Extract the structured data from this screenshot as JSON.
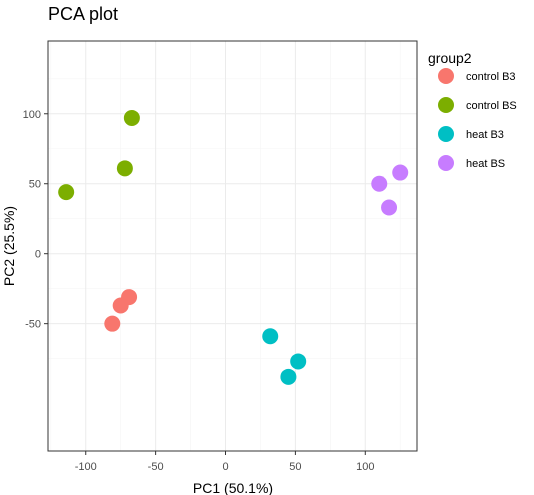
{
  "chart_data": {
    "type": "scatter",
    "title": "PCA plot",
    "xlabel": "PC1 (50.1%)",
    "ylabel": "PC2 (25.5%)",
    "xlim": [
      -127,
      137
    ],
    "ylim": [
      -141,
      152
    ],
    "xticks": [
      -100,
      -50,
      0,
      50,
      100
    ],
    "yticks": [
      -50,
      0,
      50,
      100
    ],
    "grid": true,
    "legend": {
      "title": "group2",
      "position": "right"
    },
    "series": [
      {
        "name": "control B3",
        "color": "#F8766D",
        "points": [
          {
            "x": -69,
            "y": -31
          },
          {
            "x": -75,
            "y": -37
          },
          {
            "x": -81,
            "y": -50
          }
        ]
      },
      {
        "name": "control BS",
        "color": "#7CAE00",
        "points": [
          {
            "x": -67,
            "y": 97
          },
          {
            "x": -72,
            "y": 61
          },
          {
            "x": -114,
            "y": 44
          }
        ]
      },
      {
        "name": "heat B3",
        "color": "#00BFC4",
        "points": [
          {
            "x": 32,
            "y": -59
          },
          {
            "x": 52,
            "y": -77
          },
          {
            "x": 45,
            "y": -88
          }
        ]
      },
      {
        "name": "heat BS",
        "color": "#C77CFF",
        "points": [
          {
            "x": 110,
            "y": 50
          },
          {
            "x": 125,
            "y": 58
          },
          {
            "x": 117,
            "y": 33
          }
        ]
      }
    ]
  }
}
